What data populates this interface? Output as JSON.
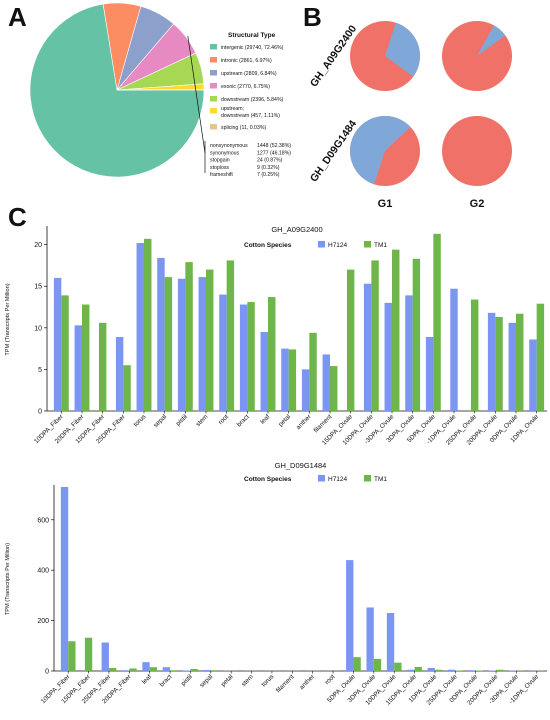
{
  "panels": {
    "a": "A",
    "b": "B",
    "c": "C"
  },
  "colors": {
    "pie": [
      "#66c2a5",
      "#fc8d62",
      "#8da0cb",
      "#e78ac3",
      "#a6d854",
      "#ffd92f",
      "#e5c494"
    ],
    "b_pie_main": "#f07167",
    "b_pie_minor": "#7fa8d8",
    "h7124": "#7b96f0",
    "tm1": "#6fb64a"
  },
  "chart_data": [
    {
      "type": "pie",
      "panel": "A",
      "legend_title": "Structural Type",
      "labels": [
        "intergenic (29740, 72.46%)",
        "intronic (2861, 6.97%)",
        "upstream (2809, 6.84%)",
        "exonic (2770, 6.75%)",
        "downstream (2396, 5.84%)",
        "upstream; downstream (457, 1.11%)",
        "splicing (11, 0.03%)"
      ],
      "values": [
        29740,
        2861,
        2809,
        2770,
        2396,
        457,
        11
      ],
      "exonic_breakdown": [
        {
          "label": "nonsynonymous",
          "value": "1448 (52.38%)"
        },
        {
          "label": "synonymous",
          "value": "1277 (46.18%)"
        },
        {
          "label": "stopgain",
          "value": "24 (0.87%)"
        },
        {
          "label": "stoploss",
          "value": "9 (0.32%)"
        },
        {
          "label": "frameshift",
          "value": "7 (0.25%)"
        }
      ]
    },
    {
      "type": "pie",
      "panel": "B",
      "rows": [
        "GH_A09G2400",
        "GH_D09G1484"
      ],
      "columns": [
        "G1",
        "G2"
      ],
      "pies": [
        [
          {
            "main": 0.7,
            "minor": 0.3
          },
          {
            "main": 0.93,
            "minor": 0.07
          }
        ],
        [
          {
            "main": 0.42,
            "minor": 0.58
          },
          {
            "main": 1.0,
            "minor": 0.0
          }
        ]
      ]
    },
    {
      "type": "bar",
      "panel": "C",
      "title": "GH_A09G2400",
      "legend_title": "Cotton Species",
      "ylabel": "TPM (Transcripts Per Million)",
      "ylim": [
        0,
        22
      ],
      "yticks": [
        0,
        5,
        10,
        15,
        20
      ],
      "categories": [
        "10DPA_Fiber",
        "20DPA_Fiber",
        "15DPA_Fiber",
        "25DPA_Fiber",
        "torus",
        "sepal",
        "pistil",
        "stem",
        "root",
        "bract",
        "leaf",
        "petal",
        "anther",
        "filament",
        "15DPA_Ovule",
        "10DPA_Ovule",
        "-3DPA_Ovule",
        "3DPA_Ovule",
        "5DPA_Ovule",
        "-1DPA_Ovule",
        "25DPA_Ovule",
        "20DPA_Ovule",
        "0DPA_Ovule",
        "1DPA_Ovule"
      ],
      "series": [
        {
          "name": "H7124",
          "values": [
            16.0,
            10.3,
            null,
            8.9,
            20.2,
            18.4,
            15.9,
            16.1,
            14.0,
            12.8,
            9.5,
            7.5,
            5.0,
            6.8,
            null,
            15.3,
            13.0,
            13.9,
            8.9,
            14.7,
            null,
            11.8,
            10.6,
            8.6
          ]
        },
        {
          "name": "TM1",
          "values": [
            13.9,
            12.8,
            10.6,
            5.5,
            20.7,
            16.1,
            17.9,
            17.0,
            18.1,
            13.1,
            13.7,
            7.4,
            9.4,
            5.4,
            17.0,
            18.1,
            19.4,
            18.3,
            21.3,
            null,
            13.4,
            11.3,
            11.7,
            12.9
          ]
        }
      ]
    },
    {
      "type": "bar",
      "panel": "C",
      "title": "GH_D09G1484",
      "legend_title": "Cotton Species",
      "ylabel": "TPM (Transcripts Per Million)",
      "ylim": [
        0,
        730
      ],
      "yticks": [
        0,
        200,
        400,
        600
      ],
      "categories": [
        "10DPA_Fiber",
        "15DPA_Fiber",
        "25DPA_Fiber",
        "20DPA_Fiber",
        "leaf",
        "bract",
        "pistil",
        "sepal",
        "petal",
        "stem",
        "torus",
        "filament",
        "anther",
        "root",
        "5DPA_Ovule",
        "3DPA_Ovule",
        "10DPA_Ovule",
        "15DPA_Ovule",
        "1DPA_Ovule",
        "25DPA_Ovule",
        "0DPA_Ovule",
        "20DPA_Ovule",
        "-3DPA_Ovule",
        "-1DPA_Ovule"
      ],
      "series": [
        {
          "name": "H7124",
          "values": [
            730,
            null,
            113,
            3,
            35,
            15,
            2,
            4,
            1,
            0.5,
            0.5,
            0.5,
            0.5,
            0.5,
            440,
            252,
            230,
            5,
            12,
            5,
            3,
            2,
            2,
            1
          ]
        },
        {
          "name": "TM1",
          "values": [
            118,
            132,
            12,
            10,
            15,
            3,
            8,
            3,
            0.5,
            0.5,
            0.5,
            0.5,
            0.5,
            0.5,
            55,
            48,
            33,
            16,
            5,
            2,
            2,
            5,
            1,
            1
          ]
        }
      ]
    }
  ]
}
